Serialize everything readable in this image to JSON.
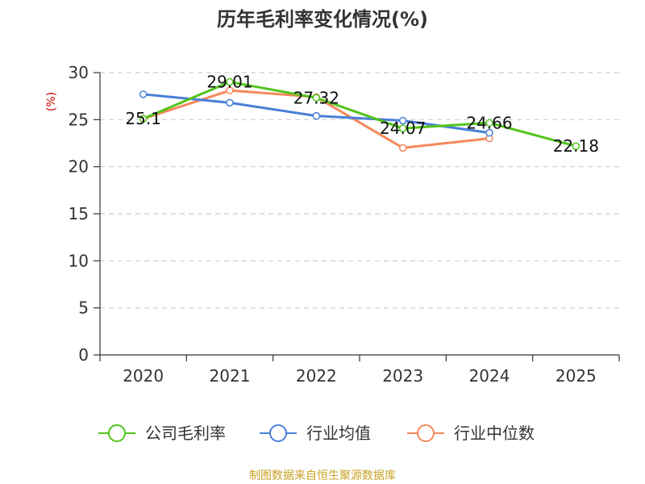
{
  "chart_data": {
    "type": "line",
    "title": "历年毛利率变化情况(%)",
    "xlabel": "",
    "ylabel": "(%)",
    "categories": [
      "2020",
      "2021",
      "2022",
      "2023",
      "2024",
      "2025"
    ],
    "ylim": [
      0,
      30
    ],
    "yticks": [
      0,
      5,
      10,
      15,
      20,
      25,
      30
    ],
    "grid": true,
    "legend_position": "bottom",
    "series": [
      {
        "name": "公司毛利率",
        "color": "#52c41a",
        "values": [
          25.1,
          29.01,
          27.32,
          24.07,
          24.66,
          22.18
        ],
        "labels": [
          "25.1",
          "29.01",
          "27.32",
          "24.07",
          "24.66",
          "22.18"
        ]
      },
      {
        "name": "行业均值",
        "color": "#4a7fd8",
        "values": [
          27.7,
          26.8,
          25.4,
          24.9,
          23.6,
          null
        ]
      },
      {
        "name": "行业中位数",
        "color": "#f5895a",
        "values": [
          25.1,
          28.1,
          27.4,
          22.0,
          23.0,
          null
        ]
      }
    ]
  },
  "source_note": "制图数据来自恒生聚源数据库"
}
